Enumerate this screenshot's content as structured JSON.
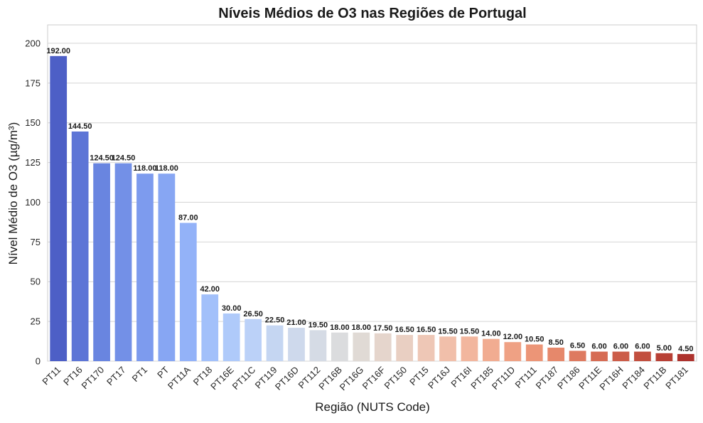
{
  "chart_data": {
    "type": "bar",
    "title": "Níveis Médios de O3 nas Regiões de Portugal",
    "xlabel": "Região (NUTS Code)",
    "ylabel": "Nível Médio de O3 (µg/m³)",
    "ylim": [
      0,
      211.6
    ],
    "yticks": [
      0,
      25,
      50,
      75,
      100,
      125,
      150,
      175,
      200
    ],
    "grid": "horizontal",
    "legend": "none",
    "categories": [
      "PT11",
      "PT16",
      "PT170",
      "PT17",
      "PT1",
      "PT",
      "PT11A",
      "PT18",
      "PT16E",
      "PT11C",
      "PT119",
      "PT16D",
      "PT112",
      "PT16B",
      "PT16G",
      "PT16F",
      "PT150",
      "PT15",
      "PT16J",
      "PT16I",
      "PT185",
      "PT11D",
      "PT111",
      "PT187",
      "PT186",
      "PT11E",
      "PT16H",
      "PT184",
      "PT11B",
      "PT181"
    ],
    "values": [
      192.0,
      144.5,
      124.5,
      124.5,
      118.0,
      118.0,
      87.0,
      42.0,
      30.0,
      26.5,
      22.5,
      21.0,
      19.5,
      18.0,
      18.0,
      17.5,
      16.5,
      16.5,
      15.5,
      15.5,
      14.0,
      12.0,
      10.5,
      8.5,
      6.5,
      6.0,
      6.0,
      6.0,
      5.0,
      4.5
    ],
    "value_labels": [
      "192.00",
      "144.50",
      "124.50",
      "124.50",
      "118.00",
      "118.00",
      "87.00",
      "42.00",
      "30.00",
      "26.50",
      "22.50",
      "21.00",
      "19.50",
      "18.00",
      "18.00",
      "17.50",
      "16.50",
      "16.50",
      "15.50",
      "15.50",
      "14.00",
      "12.00",
      "10.50",
      "8.50",
      "6.50",
      "6.00",
      "6.00",
      "6.00",
      "5.00",
      "4.50"
    ],
    "colors": [
      "#4d5fc6",
      "#5d75d6",
      "#6985e0",
      "#7390e7",
      "#7d9bee",
      "#87a6f3",
      "#93b2f8",
      "#a2c0fa",
      "#afcafa",
      "#bbd1f8",
      "#c5d6f2",
      "#ced9ec",
      "#d5dbe5",
      "#dbdcde",
      "#e0dad5",
      "#e5d5cc",
      "#e9cfc2",
      "#eec7b6",
      "#f1bfaa",
      "#f2b69e",
      "#f1ac91",
      "#efa184",
      "#ec9577",
      "#e6886b",
      "#de7a60",
      "#d66c54",
      "#cc5d49",
      "#c24f3f",
      "#b84035",
      "#ad322d"
    ]
  }
}
